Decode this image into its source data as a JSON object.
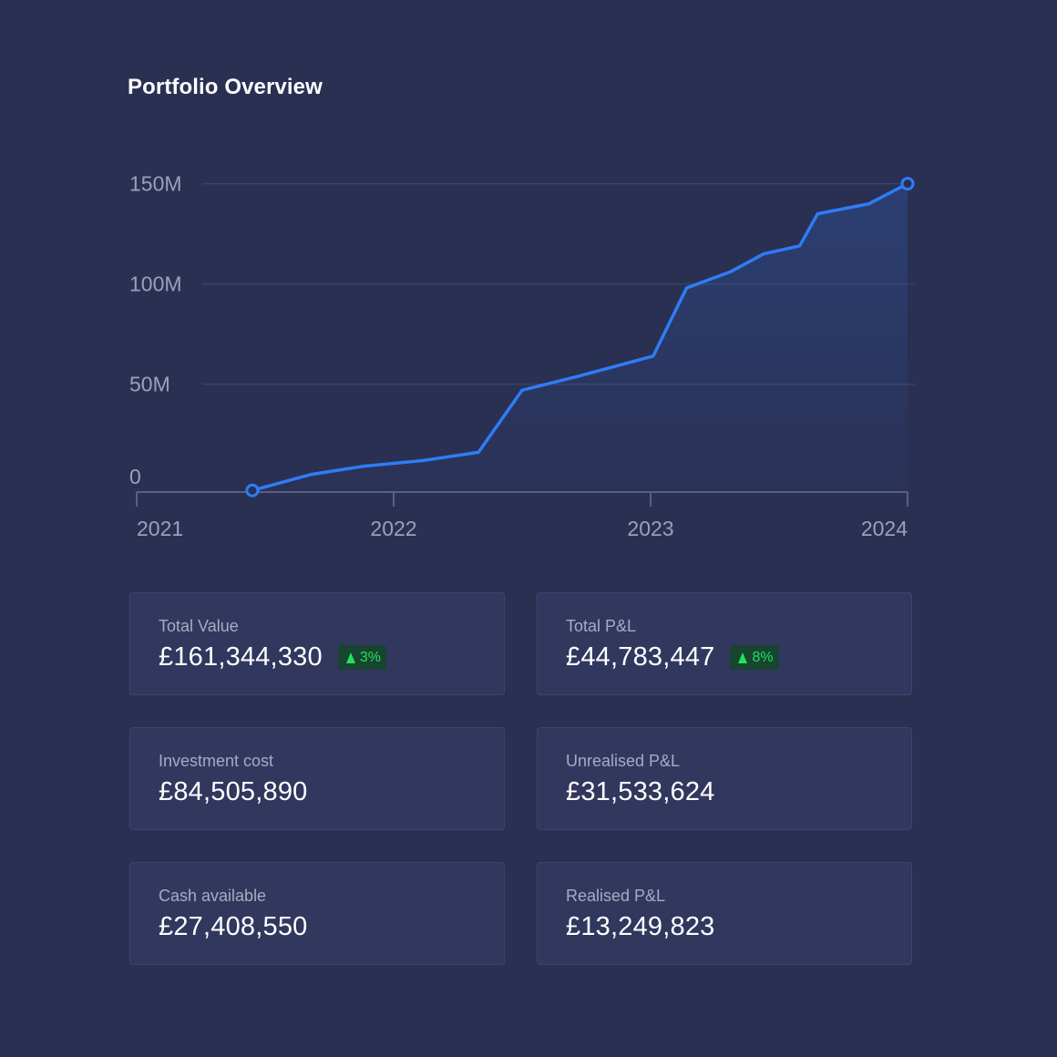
{
  "page": {
    "title": "Portfolio Overview"
  },
  "chart_data": {
    "type": "area",
    "title": "",
    "xlabel": "",
    "ylabel": "",
    "y_ticks": [
      {
        "value": 0,
        "label": "0"
      },
      {
        "value": 50,
        "label": "50M"
      },
      {
        "value": 100,
        "label": "100M"
      },
      {
        "value": 150,
        "label": "150M"
      }
    ],
    "x_ticks": [
      {
        "value": 2021,
        "label": "2021"
      },
      {
        "value": 2022,
        "label": "2022"
      },
      {
        "value": 2023,
        "label": "2023"
      },
      {
        "value": 2024,
        "label": "2024"
      }
    ],
    "xlim": [
      2021,
      2024
    ],
    "ylim": [
      0,
      150
    ],
    "grid": true,
    "colors": {
      "line": "#2f7cf6",
      "grid": "#3b4168",
      "axis": "#5a6084"
    },
    "series": [
      {
        "values": [
          {
            "x": 2021.45,
            "y": -3
          },
          {
            "x": 2021.68,
            "y": 5
          },
          {
            "x": 2021.88,
            "y": 9
          },
          {
            "x": 2022.12,
            "y": 12
          },
          {
            "x": 2022.33,
            "y": 16
          },
          {
            "x": 2022.5,
            "y": 47
          },
          {
            "x": 2022.72,
            "y": 54
          },
          {
            "x": 2023.01,
            "y": 64
          },
          {
            "x": 2023.14,
            "y": 98
          },
          {
            "x": 2023.31,
            "y": 106
          },
          {
            "x": 2023.44,
            "y": 115
          },
          {
            "x": 2023.58,
            "y": 119
          },
          {
            "x": 2023.65,
            "y": 135
          },
          {
            "x": 2023.85,
            "y": 140
          },
          {
            "x": 2024.0,
            "y": 150
          }
        ]
      }
    ]
  },
  "cards": [
    {
      "label": "Total Value",
      "value": "£161,344,330",
      "badge": "3%"
    },
    {
      "label": "Total P&L",
      "value": "£44,783,447",
      "badge": "8%"
    },
    {
      "label": "Investment cost",
      "value": "£84,505,890"
    },
    {
      "label": "Unrealised P&L",
      "value": "£31,533,624"
    },
    {
      "label": "Cash available",
      "value": "£27,408,550"
    },
    {
      "label": "Realised P&L",
      "value": "£13,249,823"
    }
  ]
}
